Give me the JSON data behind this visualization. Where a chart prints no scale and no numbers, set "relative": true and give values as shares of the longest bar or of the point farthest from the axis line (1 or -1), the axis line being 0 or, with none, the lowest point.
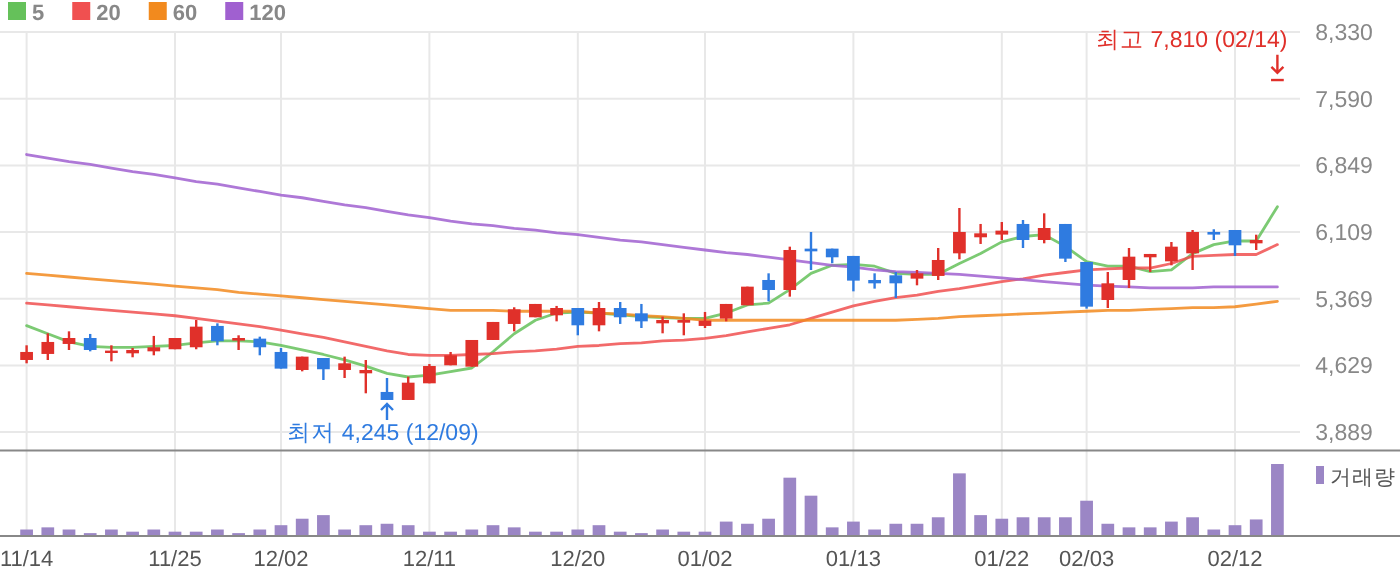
{
  "chart_data": [
    {
      "type": "candlestick",
      "categories": [
        "11/14",
        null,
        null,
        null,
        null,
        null,
        null,
        "11/25",
        null,
        null,
        null,
        null,
        "12/02",
        null,
        null,
        null,
        null,
        null,
        null,
        "12/11",
        null,
        null,
        null,
        null,
        null,
        null,
        "12/20",
        null,
        null,
        null,
        null,
        null,
        "01/02",
        null,
        null,
        null,
        null,
        null,
        null,
        "01/13",
        null,
        null,
        null,
        null,
        null,
        null,
        "01/22",
        null,
        null,
        null,
        "02/03",
        null,
        null,
        null,
        null,
        null,
        null,
        "02/12",
        null,
        null
      ],
      "ohlc": [
        [
          4689,
          4852,
          4652,
          4778
        ],
        [
          4756,
          4985,
          4689,
          4889
        ],
        [
          4867,
          5007,
          4800,
          4933
        ],
        [
          4933,
          4978,
          4785,
          4800
        ],
        [
          4771,
          4852,
          4674,
          4793
        ],
        [
          4763,
          4822,
          4719,
          4800
        ],
        [
          4785,
          4956,
          4741,
          4830
        ],
        [
          4808,
          4933,
          4808,
          4933
        ],
        [
          4830,
          5133,
          4808,
          5059
        ],
        [
          5067,
          5096,
          4852,
          4897
        ],
        [
          4904,
          4963,
          4800,
          4933
        ],
        [
          4926,
          4948,
          4741,
          4830
        ],
        [
          4778,
          4822,
          4593,
          4593
        ],
        [
          4578,
          4726,
          4563,
          4726
        ],
        [
          4711,
          4711,
          4467,
          4586
        ],
        [
          4578,
          4726,
          4489,
          4652
        ],
        [
          4541,
          4689,
          4319,
          4578
        ],
        [
          4334,
          4489,
          4245,
          4245
        ],
        [
          4245,
          4504,
          4245,
          4437
        ],
        [
          4430,
          4644,
          4430,
          4622
        ],
        [
          4630,
          4778,
          4630,
          4741
        ],
        [
          4615,
          4911,
          4615,
          4911
        ],
        [
          4911,
          5111,
          4911,
          5111
        ],
        [
          5089,
          5274,
          5007,
          5252
        ],
        [
          5163,
          5311,
          5163,
          5311
        ],
        [
          5185,
          5289,
          5118,
          5266
        ],
        [
          5266,
          5266,
          4963,
          5074
        ],
        [
          5074,
          5333,
          5007,
          5266
        ],
        [
          5266,
          5333,
          5089,
          5163
        ],
        [
          5207,
          5311,
          5044,
          5118
        ],
        [
          5096,
          5170,
          4985,
          5133
        ],
        [
          5103,
          5207,
          4963,
          5133
        ],
        [
          5067,
          5222,
          5044,
          5126
        ],
        [
          5148,
          5311,
          5118,
          5311
        ],
        [
          5296,
          5503,
          5296,
          5503
        ],
        [
          5577,
          5651,
          5340,
          5466
        ],
        [
          5466,
          5947,
          5392,
          5910
        ],
        [
          5925,
          6110,
          5688,
          5895
        ],
        [
          5925,
          5925,
          5762,
          5829
        ],
        [
          5844,
          5844,
          5451,
          5570
        ],
        [
          5577,
          5651,
          5481,
          5540
        ],
        [
          5629,
          5666,
          5377,
          5540
        ],
        [
          5592,
          5688,
          5518,
          5651
        ],
        [
          5622,
          5932,
          5577,
          5799
        ],
        [
          5873,
          6376,
          5807,
          6110
        ],
        [
          6051,
          6199,
          5977,
          6095
        ],
        [
          6081,
          6221,
          6021,
          6125
        ],
        [
          6199,
          6243,
          5932,
          6021
        ],
        [
          6021,
          6317,
          5984,
          6154
        ],
        [
          6199,
          6199,
          5777,
          5814
        ],
        [
          5777,
          5777,
          5259,
          5281
        ],
        [
          5355,
          5666,
          5266,
          5540
        ],
        [
          5577,
          5932,
          5488,
          5836
        ],
        [
          5829,
          5866,
          5666,
          5866
        ],
        [
          5784,
          5999,
          5740,
          5947
        ],
        [
          5873,
          6132,
          5688,
          6110
        ],
        [
          6110,
          6140,
          6021,
          6081
        ],
        [
          6132,
          6132,
          5844,
          5962
        ],
        [
          5984,
          6080,
          5910,
          6021
        ],
        [
          7810,
          7810,
          7810,
          7810
        ]
      ],
      "colors": [
        "#e0302a",
        "#e0302a",
        "#e0302a",
        "#2f7be0",
        "#e0302a",
        "#e0302a",
        "#e0302a",
        "#e0302a",
        "#e0302a",
        "#2f7be0",
        "#e0302a",
        "#2f7be0",
        "#2f7be0",
        "#e0302a",
        "#2f7be0",
        "#e0302a",
        "#e0302a",
        "#2f7be0",
        "#e0302a",
        "#e0302a",
        "#e0302a",
        "#e0302a",
        "#e0302a",
        "#e0302a",
        "#e0302a",
        "#e0302a",
        "#2f7be0",
        "#e0302a",
        "#2f7be0",
        "#2f7be0",
        "#e0302a",
        "#e0302a",
        "#e0302a",
        "#e0302a",
        "#e0302a",
        "#2f7be0",
        "#e0302a",
        "#2f7be0",
        "#2f7be0",
        "#2f7be0",
        "#2f7be0",
        "#2f7be0",
        "#e0302a",
        "#e0302a",
        "#e0302a",
        "#e0302a",
        "#e0302a",
        "#2f7be0",
        "#e0302a",
        "#2f7be0",
        "#2f7be0",
        "#e0302a",
        "#e0302a",
        "#e0302a",
        "#e0302a",
        "#e0302a",
        "#2f7be0",
        "#2f7be0",
        "#e0302a",
        "#e0302a"
      ],
      "series": [
        {
          "type": "line",
          "name": "5",
          "color": "#65c15a",
          "values": [
            5070,
            4980,
            4890,
            4840,
            4830,
            4830,
            4840,
            4850,
            4880,
            4900,
            4900,
            4890,
            4850,
            4800,
            4750,
            4690,
            4620,
            4540,
            4500,
            4520,
            4560,
            4600,
            4780,
            4980,
            5130,
            5210,
            5220,
            5210,
            5190,
            5170,
            5160,
            5150,
            5150,
            5210,
            5300,
            5320,
            5470,
            5650,
            5740,
            5750,
            5730,
            5650,
            5640,
            5640,
            5760,
            5870,
            6000,
            6060,
            6080,
            5950,
            5780,
            5730,
            5730,
            5670,
            5690,
            5870,
            5970,
            6010,
            6010,
            6390
          ]
        },
        {
          "type": "line",
          "name": "20",
          "color": "#f05050",
          "values": [
            5320,
            5300,
            5280,
            5260,
            5240,
            5220,
            5200,
            5180,
            5150,
            5120,
            5090,
            5060,
            5020,
            4980,
            4940,
            4890,
            4840,
            4790,
            4750,
            4740,
            4740,
            4750,
            4760,
            4780,
            4790,
            4810,
            4840,
            4850,
            4870,
            4880,
            4900,
            4910,
            4930,
            4960,
            5000,
            5040,
            5080,
            5150,
            5220,
            5290,
            5340,
            5380,
            5410,
            5450,
            5480,
            5520,
            5560,
            5590,
            5630,
            5660,
            5690,
            5700,
            5710,
            5710,
            5760,
            5840,
            5850,
            5860,
            5860,
            5970
          ]
        },
        {
          "type": "line",
          "name": "60",
          "color": "#f28a1e",
          "values": [
            5650,
            5630,
            5610,
            5590,
            5570,
            5550,
            5530,
            5510,
            5490,
            5470,
            5440,
            5420,
            5400,
            5380,
            5360,
            5340,
            5320,
            5300,
            5280,
            5260,
            5240,
            5240,
            5240,
            5230,
            5230,
            5230,
            5230,
            5210,
            5200,
            5180,
            5170,
            5150,
            5130,
            5130,
            5130,
            5130,
            5130,
            5130,
            5130,
            5130,
            5130,
            5130,
            5140,
            5150,
            5170,
            5180,
            5190,
            5200,
            5210,
            5220,
            5230,
            5240,
            5240,
            5250,
            5260,
            5270,
            5270,
            5280,
            5310,
            5340
          ]
        },
        {
          "type": "line",
          "name": "120",
          "color": "#a060d0",
          "values": [
            6970,
            6930,
            6890,
            6860,
            6820,
            6780,
            6750,
            6710,
            6670,
            6640,
            6600,
            6560,
            6520,
            6490,
            6450,
            6410,
            6380,
            6340,
            6300,
            6270,
            6230,
            6200,
            6180,
            6150,
            6130,
            6100,
            6080,
            6050,
            6020,
            6000,
            5970,
            5940,
            5910,
            5880,
            5860,
            5830,
            5800,
            5770,
            5740,
            5720,
            5690,
            5670,
            5660,
            5650,
            5640,
            5620,
            5600,
            5580,
            5560,
            5540,
            5520,
            5510,
            5500,
            5490,
            5490,
            5490,
            5500,
            5500,
            5500,
            5500
          ]
        }
      ],
      "ylim": [
        3683,
        8330
      ],
      "yticks": [
        {
          "value": 3889,
          "label": "3,889"
        },
        {
          "value": 4629,
          "label": "4,629"
        },
        {
          "value": 5369,
          "label": "5,369"
        },
        {
          "value": 6109,
          "label": "6,109"
        },
        {
          "value": 6849,
          "label": "6,849"
        },
        {
          "value": 7590,
          "label": "7,590"
        },
        {
          "value": 8330,
          "label": "8,330"
        }
      ],
      "grid": true,
      "legend": "top left",
      "annotations": [
        "최고 7,810 (02/14)",
        "최저 4,245 (12/09)"
      ]
    },
    {
      "type": "bar",
      "relative": true,
      "categories": [
        null,
        null,
        null,
        null,
        null,
        null,
        null,
        null,
        null,
        null,
        null,
        null,
        null,
        null,
        null,
        null,
        null,
        null,
        null,
        null,
        null,
        null,
        null,
        null,
        null,
        null,
        null,
        null,
        null,
        null,
        null,
        null,
        null,
        null,
        null,
        null,
        null,
        null,
        null,
        null,
        null,
        null,
        null,
        null,
        null,
        null,
        null,
        null,
        null,
        null,
        null,
        null,
        null,
        null,
        null,
        null,
        null,
        null,
        null,
        null
      ],
      "series": [
        {
          "name": "거래량",
          "color": "#9b86c5",
          "values": [
            0.09,
            0.12,
            0.09,
            0.04,
            0.09,
            0.06,
            0.09,
            0.06,
            0.06,
            0.09,
            0.04,
            0.09,
            0.15,
            0.24,
            0.29,
            0.09,
            0.15,
            0.17,
            0.15,
            0.06,
            0.06,
            0.09,
            0.15,
            0.12,
            0.06,
            0.06,
            0.09,
            0.15,
            0.06,
            0.04,
            0.09,
            0.06,
            0.06,
            0.2,
            0.17,
            0.24,
            0.81,
            0.56,
            0.12,
            0.2,
            0.09,
            0.17,
            0.17,
            0.26,
            0.87,
            0.29,
            0.24,
            0.26,
            0.26,
            0.26,
            0.49,
            0.17,
            0.12,
            0.12,
            0.2,
            0.26,
            0.09,
            0.15,
            0.23,
            1
          ]
        }
      ],
      "legend": "top right"
    }
  ]
}
